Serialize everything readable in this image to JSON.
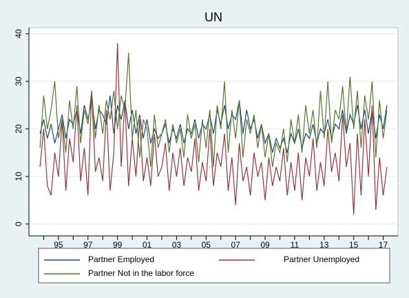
{
  "chart_data": {
    "type": "line",
    "title": "UN",
    "x": [
      1993.75,
      1994,
      1994.25,
      1994.5,
      1994.75,
      1995,
      1995.25,
      1995.5,
      1995.75,
      1996,
      1996.25,
      1996.5,
      1996.75,
      1997,
      1997.25,
      1997.5,
      1997.75,
      1998,
      1998.25,
      1998.5,
      1998.75,
      1999,
      1999.25,
      1999.5,
      1999.75,
      2000,
      2000.25,
      2000.5,
      2000.75,
      2001,
      2001.25,
      2001.5,
      2001.75,
      2002,
      2002.25,
      2002.5,
      2002.75,
      2003,
      2003.25,
      2003.5,
      2003.75,
      2004,
      2004.25,
      2004.5,
      2004.75,
      2005,
      2005.25,
      2005.5,
      2005.75,
      2006,
      2006.25,
      2006.5,
      2006.75,
      2007,
      2007.25,
      2007.5,
      2007.75,
      2008,
      2008.25,
      2008.5,
      2008.75,
      2009,
      2009.25,
      2009.5,
      2009.75,
      2010,
      2010.25,
      2010.5,
      2010.75,
      2011,
      2011.25,
      2011.5,
      2011.75,
      2012,
      2012.25,
      2012.5,
      2012.75,
      2013,
      2013.25,
      2013.5,
      2013.75,
      2014,
      2014.25,
      2014.5,
      2014.75,
      2015,
      2015.25,
      2015.5,
      2015.75,
      2016,
      2016.25,
      2016.5,
      2016.75,
      2017,
      2017.25
    ],
    "series": [
      {
        "name": "Partner Employed",
        "color": "#1a476f",
        "values": [
          19,
          22,
          18,
          21,
          17,
          20,
          23,
          18,
          22,
          21,
          24,
          19,
          25,
          22,
          26,
          20,
          24,
          23,
          21,
          27,
          19,
          25,
          22,
          26,
          20,
          24,
          19,
          23,
          18,
          22,
          17,
          20,
          18,
          19,
          21,
          17,
          20,
          18,
          21,
          17,
          20,
          19,
          22,
          18,
          21,
          20,
          23,
          19,
          24,
          21,
          25,
          20,
          23,
          22,
          26,
          19,
          24,
          20,
          22,
          18,
          21,
          17,
          19,
          15,
          18,
          16,
          18,
          15,
          19,
          17,
          20,
          16,
          19,
          18,
          21,
          17,
          20,
          19,
          22,
          18,
          21,
          20,
          24,
          19,
          23,
          21,
          25,
          20,
          24,
          19,
          24,
          18,
          23,
          20,
          25
        ]
      },
      {
        "name": "Partner Unemployed",
        "color": "#90353b",
        "values": [
          12,
          20,
          8,
          6,
          15,
          10,
          22,
          7,
          18,
          13,
          25,
          9,
          16,
          6,
          28,
          11,
          14,
          9,
          24,
          7,
          15,
          38,
          12,
          26,
          8,
          18,
          10,
          22,
          9,
          14,
          8,
          19,
          10,
          12,
          17,
          7,
          15,
          10,
          16,
          8,
          14,
          11,
          18,
          7,
          13,
          9,
          20,
          8,
          15,
          12,
          19,
          7,
          14,
          4,
          17,
          9,
          12,
          6,
          15,
          10,
          13,
          5,
          14,
          8,
          12,
          9,
          16,
          6,
          13,
          7,
          15,
          5,
          14,
          10,
          18,
          7,
          13,
          8,
          20,
          11,
          15,
          9,
          23,
          12,
          17,
          2,
          19,
          6,
          22,
          10,
          25,
          3,
          14,
          6,
          12
        ]
      },
      {
        "name": "Partner Not in the labor force",
        "color": "#55752f",
        "values": [
          16,
          27,
          20,
          24,
          30,
          18,
          22,
          15,
          26,
          20,
          29,
          17,
          24,
          21,
          28,
          18,
          25,
          19,
          26,
          22,
          28,
          20,
          27,
          24,
          36,
          18,
          24,
          14,
          22,
          20,
          12,
          23,
          16,
          19,
          22,
          15,
          21,
          17,
          20,
          14,
          23,
          18,
          21,
          13,
          22,
          16,
          24,
          12,
          25,
          20,
          30,
          15,
          24,
          18,
          26,
          14,
          22,
          19,
          23,
          16,
          21,
          14,
          19,
          12,
          17,
          15,
          20,
          13,
          22,
          17,
          23,
          15,
          25,
          19,
          24,
          16,
          28,
          18,
          30,
          17,
          24,
          22,
          29,
          19,
          31,
          20,
          28,
          16,
          27,
          22,
          30,
          14,
          26,
          18,
          24
        ]
      }
    ],
    "xlim": [
      1993,
      2018
    ],
    "xticks": [
      {
        "value": 1995,
        "label": "95"
      },
      {
        "value": 1997,
        "label": "97"
      },
      {
        "value": 1999,
        "label": "99"
      },
      {
        "value": 2001,
        "label": "01"
      },
      {
        "value": 2003,
        "label": "03"
      },
      {
        "value": 2005,
        "label": "05"
      },
      {
        "value": 2007,
        "label": "07"
      },
      {
        "value": 2009,
        "label": "09"
      },
      {
        "value": 2011,
        "label": "11"
      },
      {
        "value": 2013,
        "label": "13"
      },
      {
        "value": 2015,
        "label": "15"
      },
      {
        "value": 2017,
        "label": "17"
      }
    ],
    "xminorticks": [
      1994,
      1996,
      1998,
      2000,
      2002,
      2004,
      2006,
      2008,
      2010,
      2012,
      2014,
      2016
    ],
    "ylim": [
      -2.5,
      41.3
    ],
    "yticks": [
      0,
      10,
      20,
      30,
      40
    ],
    "grid": true,
    "legend": "bottom"
  }
}
